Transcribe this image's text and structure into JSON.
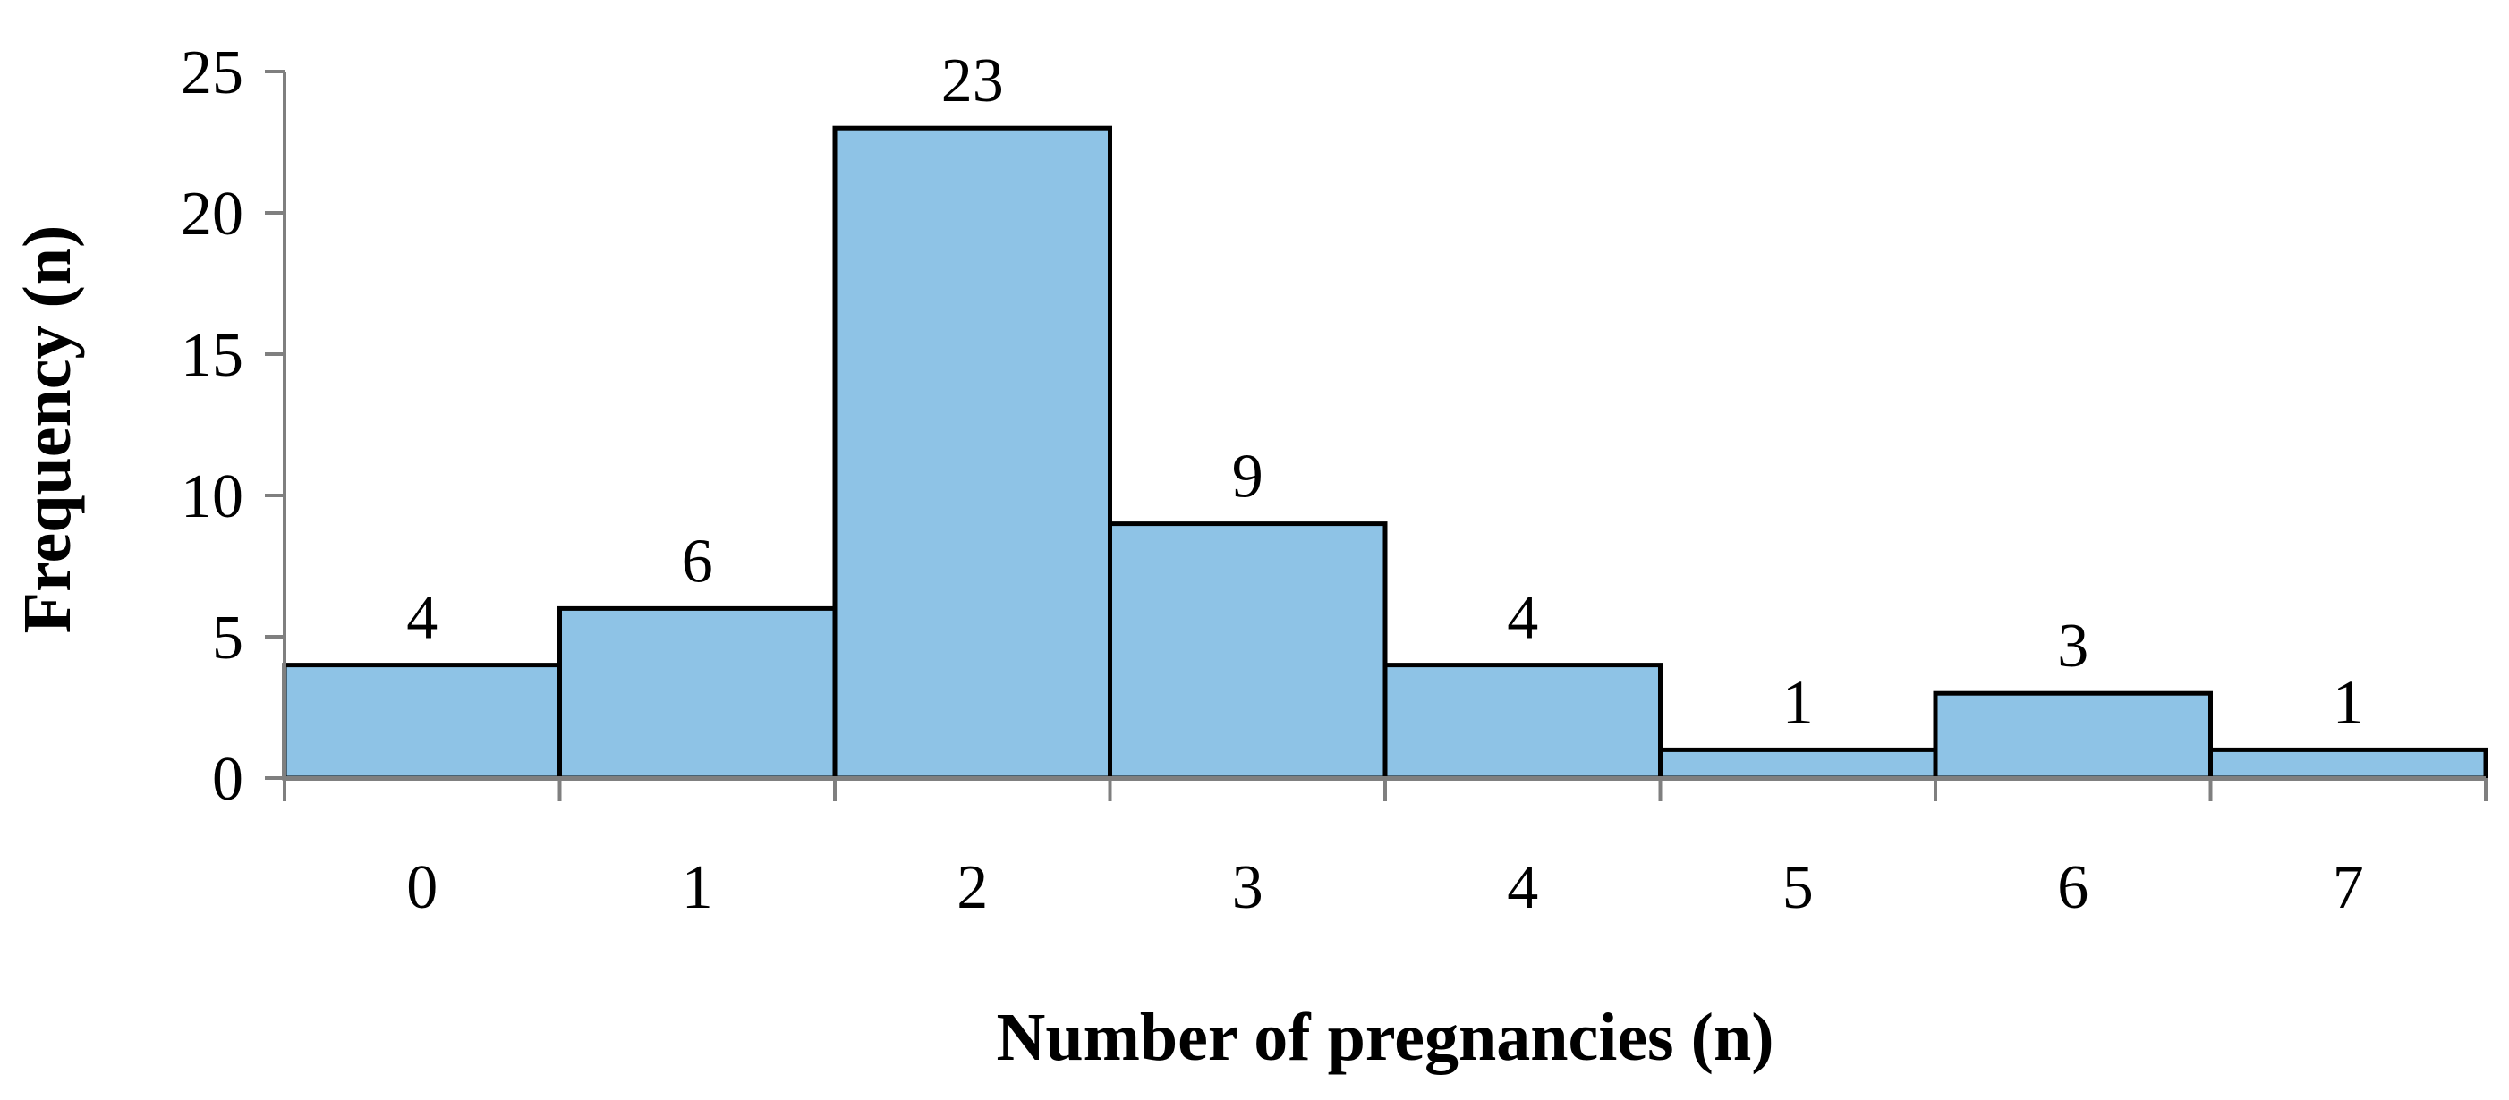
{
  "chart_data": {
    "type": "bar",
    "categories": [
      "0",
      "1",
      "2",
      "3",
      "4",
      "5",
      "6",
      "7"
    ],
    "values": [
      4,
      6,
      23,
      9,
      4,
      1,
      3,
      1
    ],
    "data_labels": [
      "4",
      "6",
      "23",
      "9",
      "4",
      "1",
      "3",
      "1"
    ],
    "title": "",
    "xlabel": "Number of pregnancies (n)",
    "ylabel": "Frequency (n)",
    "ylim": [
      0,
      25
    ],
    "yticks": [
      0,
      5,
      10,
      15,
      20,
      25
    ],
    "ytick_labels": [
      "0",
      "5",
      "10",
      "15",
      "20",
      "25"
    ],
    "grid": false,
    "legend": "none",
    "bar_color": "#8EC3E6",
    "bar_edge_color": "#000000",
    "axis_color": "#7F7F7F"
  }
}
